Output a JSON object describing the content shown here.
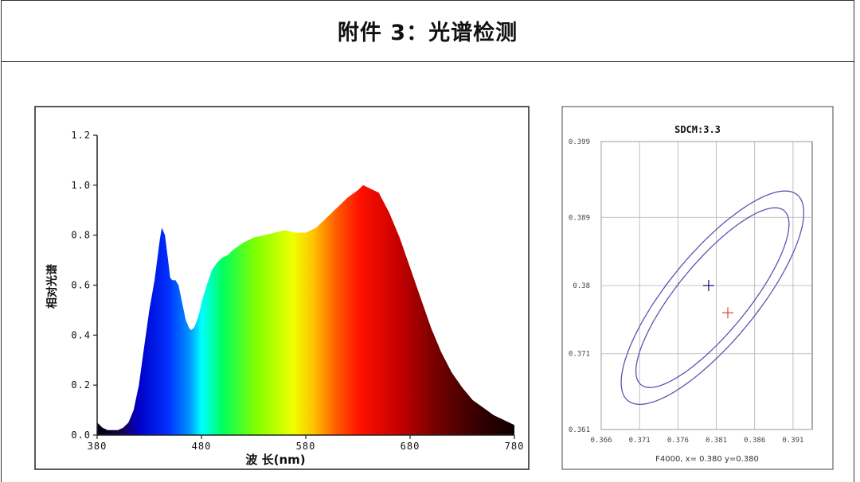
{
  "header": {
    "title": "附件 3：光谱检测"
  },
  "chart_data": [
    {
      "type": "area",
      "ylabel": "相对光谱",
      "xlabel": "波 长(nm)",
      "x_ticks": [
        "380",
        "480",
        "580",
        "680",
        "780"
      ],
      "y_ticks": [
        "0.0",
        "0.2",
        "0.4",
        "0.6",
        "0.8",
        "1.0",
        "1.2"
      ],
      "xlim": [
        380,
        780
      ],
      "ylim": [
        0,
        1.2
      ],
      "colormap": "visible-spectrum",
      "x": [
        380,
        385,
        390,
        395,
        400,
        405,
        410,
        415,
        420,
        425,
        430,
        435,
        440,
        442,
        445,
        448,
        450,
        452,
        455,
        458,
        460,
        463,
        465,
        468,
        470,
        473,
        475,
        478,
        480,
        485,
        490,
        495,
        500,
        505,
        510,
        520,
        530,
        540,
        550,
        560,
        570,
        580,
        590,
        600,
        610,
        620,
        630,
        635,
        640,
        650,
        660,
        670,
        680,
        690,
        700,
        710,
        720,
        730,
        740,
        750,
        760,
        770,
        780
      ],
      "y": [
        0.05,
        0.03,
        0.02,
        0.02,
        0.02,
        0.03,
        0.05,
        0.1,
        0.2,
        0.35,
        0.5,
        0.62,
        0.78,
        0.83,
        0.8,
        0.7,
        0.63,
        0.62,
        0.62,
        0.6,
        0.56,
        0.5,
        0.46,
        0.43,
        0.42,
        0.43,
        0.45,
        0.49,
        0.53,
        0.6,
        0.66,
        0.69,
        0.71,
        0.72,
        0.74,
        0.77,
        0.79,
        0.8,
        0.81,
        0.82,
        0.81,
        0.81,
        0.83,
        0.87,
        0.91,
        0.95,
        0.98,
        1.0,
        0.99,
        0.97,
        0.89,
        0.79,
        0.67,
        0.55,
        0.43,
        0.33,
        0.25,
        0.19,
        0.14,
        0.11,
        0.08,
        0.06,
        0.04
      ]
    },
    {
      "type": "scatter",
      "title": "SDCM:3.3",
      "x_ticks": [
        "0.366",
        "0.371",
        "0.376",
        "0.381",
        "0.386",
        "0.391"
      ],
      "y_ticks": [
        "0.361",
        "0.371",
        "0.38",
        "0.389",
        "0.399"
      ],
      "xlim": [
        0.366,
        0.3935
      ],
      "ylim": [
        0.361,
        0.399
      ],
      "grid": true,
      "ellipses": [
        {
          "cx": 0.3805,
          "cy": 0.3784,
          "a": 0.0148,
          "b": 0.0046,
          "angle_deg": 51
        },
        {
          "cx": 0.3805,
          "cy": 0.3784,
          "a": 0.0175,
          "b": 0.0058,
          "angle_deg": 51
        }
      ],
      "points": [
        {
          "name": "target",
          "x": 0.38,
          "y": 0.38,
          "color": "#1f1a8c"
        },
        {
          "name": "measured",
          "x": 0.3825,
          "y": 0.3764,
          "color": "#e0532a"
        }
      ],
      "caption": "F4000, x= 0.380 y=0.380"
    }
  ],
  "colors": {
    "ellipse": "#5a56b0",
    "grid": "#b0b0b0",
    "axis": "#222222"
  }
}
